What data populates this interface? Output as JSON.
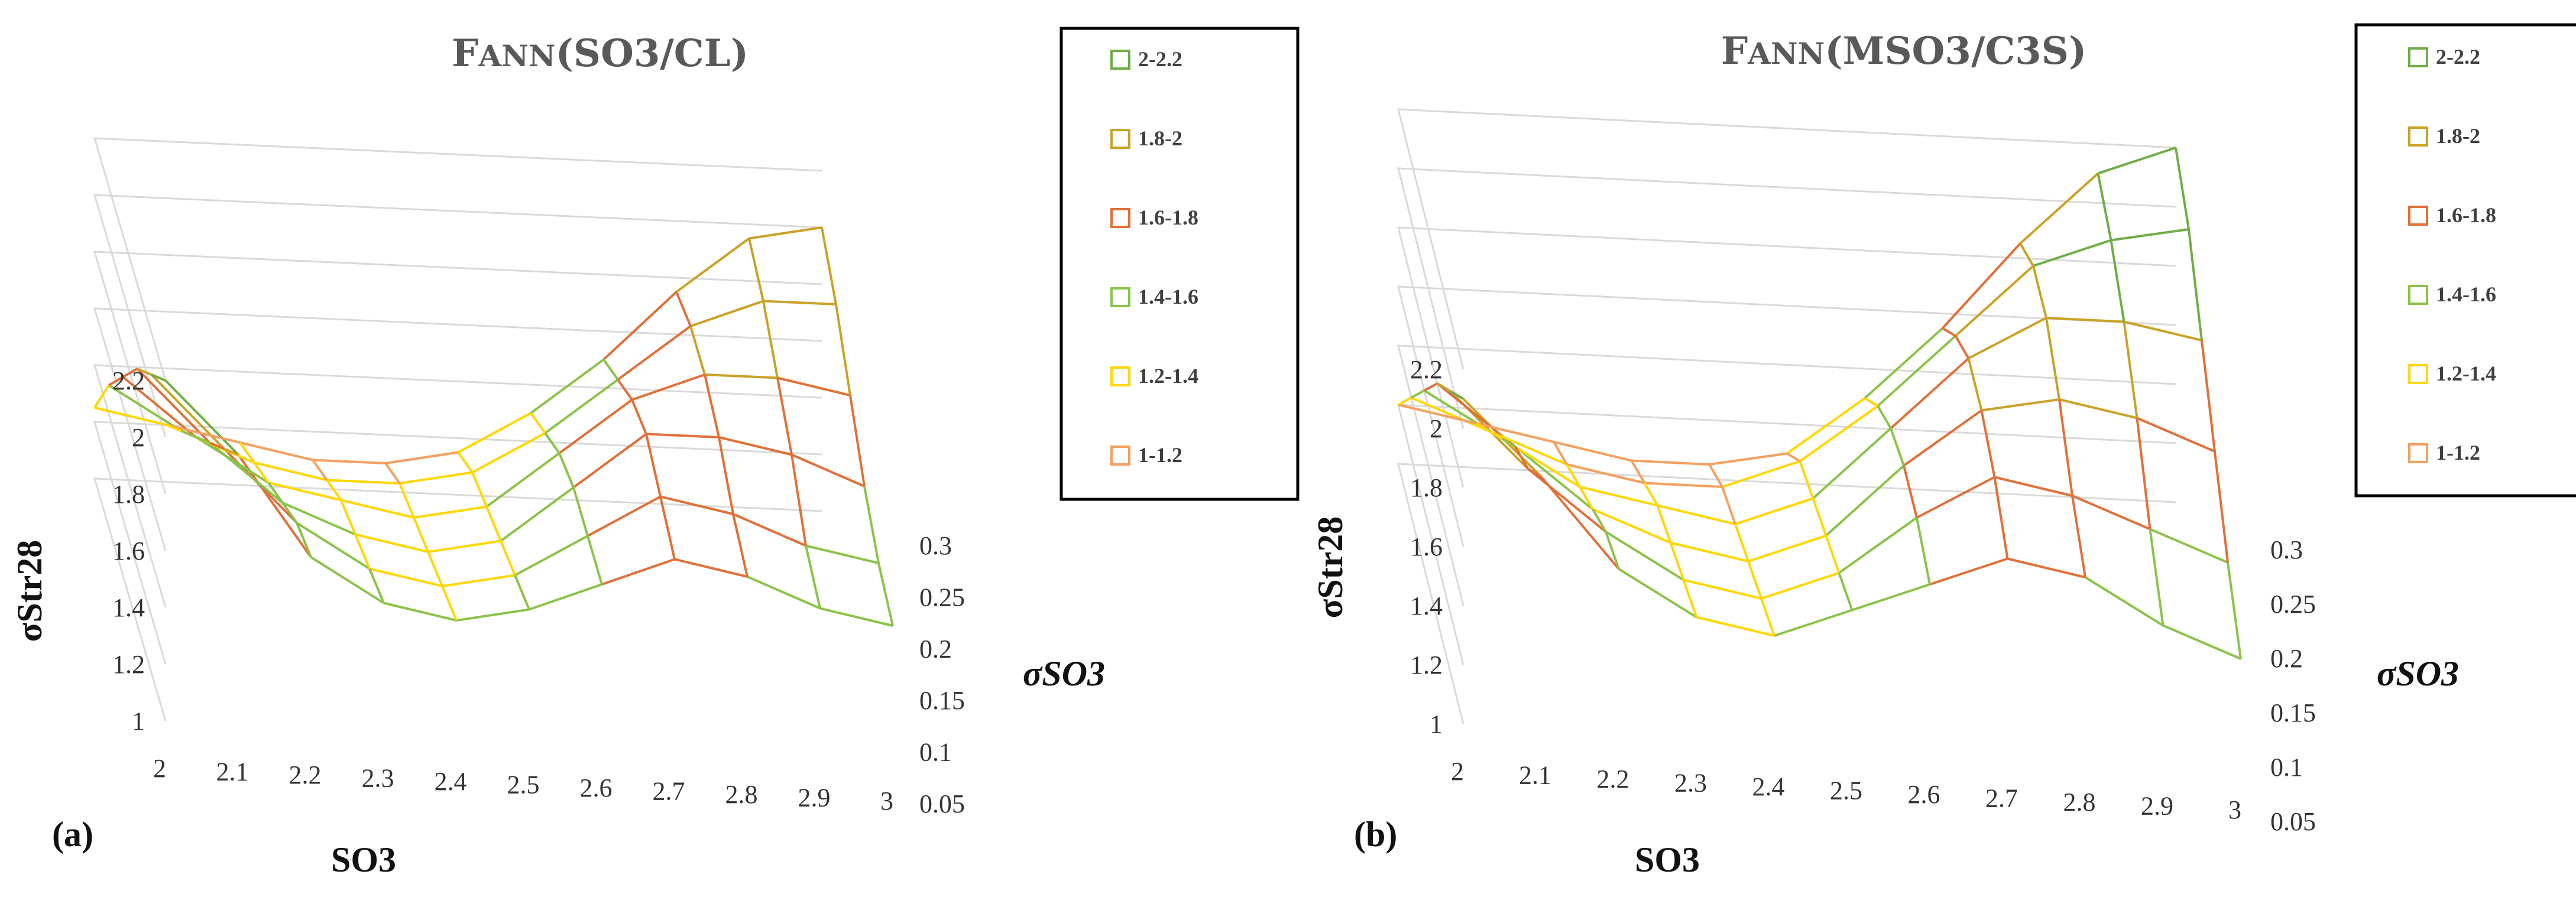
{
  "chart_data": [
    {
      "type": "surface3d",
      "panel_label": "(a)",
      "title_prefix": "F",
      "title_smallcaps": "ANN",
      "title_suffix": "(SO3/CL)",
      "xlabel": "SO3",
      "ylabel": "σStr28",
      "zlabel": "σSO3",
      "x_ticks": [
        "2",
        "2.1",
        "2.2",
        "2.3",
        "2.4",
        "2.5",
        "2.6",
        "2.7",
        "2.8",
        "2.9",
        "3"
      ],
      "z_ticks": [
        "0.05",
        "0.1",
        "0.15",
        "0.2",
        "0.25",
        "0.3"
      ],
      "y_ticks": [
        "1",
        "1.2",
        "1.4",
        "1.6",
        "1.8",
        "2",
        "2.2"
      ],
      "ylim": [
        1,
        2.2
      ],
      "legend": [
        {
          "label": "2-2.2",
          "color": "#70AD47"
        },
        {
          "label": "1.8-2",
          "color": "#C9A227"
        },
        {
          "label": "1.6-1.8",
          "color": "#E0703A"
        },
        {
          "label": "1.4-1.6",
          "color": "#8BC34A"
        },
        {
          "label": "1.2-1.4",
          "color": "#FFD700"
        },
        {
          "label": "1-1.2",
          "color": "#F4A060"
        }
      ],
      "surface": [
        [
          2.2,
          1.95,
          1.6,
          1.45,
          1.4,
          1.45,
          1.55,
          1.65,
          1.6,
          1.5,
          1.45
        ],
        [
          2.05,
          1.8,
          1.55,
          1.4,
          1.35,
          1.4,
          1.55,
          1.7,
          1.65,
          1.55,
          1.5
        ],
        [
          1.9,
          1.65,
          1.45,
          1.35,
          1.3,
          1.35,
          1.55,
          1.75,
          1.75,
          1.7,
          1.6
        ],
        [
          1.7,
          1.5,
          1.35,
          1.3,
          1.25,
          1.3,
          1.5,
          1.7,
          1.8,
          1.8,
          1.75
        ],
        [
          1.5,
          1.35,
          1.25,
          1.2,
          1.2,
          1.25,
          1.4,
          1.6,
          1.8,
          1.9,
          1.9
        ],
        [
          1.25,
          1.2,
          1.15,
          1.1,
          1.1,
          1.15,
          1.3,
          1.5,
          1.75,
          1.95,
          2.0
        ]
      ]
    },
    {
      "type": "surface3d",
      "panel_label": "(b)",
      "title_prefix": "F",
      "title_smallcaps": "ANN",
      "title_suffix": "(MSO3/C3S)",
      "xlabel": "SO3",
      "ylabel": "σStr28",
      "zlabel": "σSO3",
      "x_ticks": [
        "2",
        "2.1",
        "2.2",
        "2.3",
        "2.4",
        "2.5",
        "2.6",
        "2.7",
        "2.8",
        "2.9",
        "3"
      ],
      "z_ticks": [
        "0.05",
        "0.1",
        "0.15",
        "0.2",
        "0.25",
        "0.3"
      ],
      "y_ticks": [
        "1",
        "1.2",
        "1.4",
        "1.6",
        "1.8",
        "2",
        "2.2"
      ],
      "ylim": [
        1,
        2.2
      ],
      "legend": [
        {
          "label": "2-2.2",
          "color": "#70AD47"
        },
        {
          "label": "1.8-2",
          "color": "#C9A227"
        },
        {
          "label": "1.6-1.8",
          "color": "#E0703A"
        },
        {
          "label": "1.4-1.6",
          "color": "#8BC34A"
        },
        {
          "label": "1.2-1.4",
          "color": "#FFD700"
        },
        {
          "label": "1-1.2",
          "color": "#F4A060"
        }
      ],
      "surface": [
        [
          2.1,
          1.85,
          1.55,
          1.4,
          1.35,
          1.45,
          1.55,
          1.65,
          1.6,
          1.45,
          1.35
        ],
        [
          1.95,
          1.7,
          1.5,
          1.35,
          1.3,
          1.4,
          1.6,
          1.75,
          1.7,
          1.6,
          1.5
        ],
        [
          1.8,
          1.6,
          1.4,
          1.3,
          1.25,
          1.35,
          1.6,
          1.8,
          1.85,
          1.8,
          1.7
        ],
        [
          1.6,
          1.45,
          1.3,
          1.25,
          1.2,
          1.3,
          1.55,
          1.8,
          1.95,
          1.95,
          1.9
        ],
        [
          1.4,
          1.3,
          1.2,
          1.15,
          1.15,
          1.25,
          1.45,
          1.7,
          1.95,
          2.05,
          2.1
        ],
        [
          1.2,
          1.15,
          1.1,
          1.05,
          1.05,
          1.1,
          1.3,
          1.55,
          1.85,
          2.1,
          2.2
        ]
      ]
    }
  ]
}
